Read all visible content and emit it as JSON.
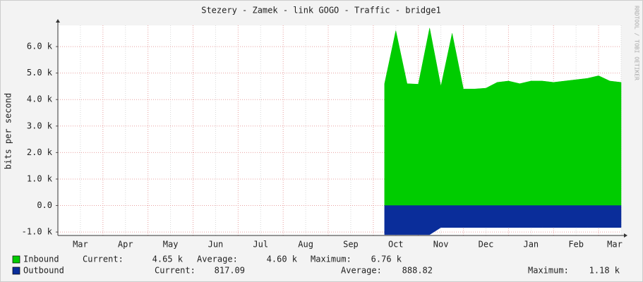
{
  "chart_data": {
    "type": "area",
    "title": "Stezery - Zamek - link GOGO  - Traffic - bridge1",
    "y_label": "bits per second",
    "watermark": "RRDTOOL / TOBI OETIKER",
    "categories": [
      null,
      null,
      "Mar",
      null,
      null,
      null,
      "Apr",
      null,
      null,
      null,
      "May",
      null,
      null,
      null,
      "Jun",
      null,
      null,
      null,
      "Jul",
      null,
      null,
      null,
      "Aug",
      null,
      null,
      null,
      "Sep",
      null,
      null,
      null,
      "Oct",
      null,
      null,
      null,
      "Nov",
      null,
      null,
      null,
      "Dec",
      null,
      null,
      null,
      "Jan",
      null,
      null,
      null,
      "Feb",
      null,
      null,
      null,
      "Mar"
    ],
    "series": [
      {
        "name": "Inbound",
        "color": "#00cc00",
        "values": [
          null,
          null,
          null,
          null,
          null,
          null,
          null,
          null,
          null,
          null,
          null,
          null,
          null,
          null,
          null,
          null,
          null,
          null,
          null,
          null,
          null,
          null,
          null,
          null,
          null,
          null,
          null,
          null,
          null,
          4600,
          6600,
          4600,
          4580,
          6700,
          4500,
          6500,
          4400,
          4400,
          4430,
          4650,
          4700,
          4600,
          4700,
          4700,
          4650,
          4700,
          4750,
          4800,
          4900,
          4700,
          4650
        ],
        "stats": [
          {
            "label": "Current:",
            "value": "4.65 k"
          },
          {
            "label": "Average:",
            "value": "4.60 k"
          },
          {
            "label": "Maximum:",
            "value": "6.76 k"
          }
        ]
      },
      {
        "name": "Outbound",
        "color": "#0a2d9a",
        "values": [
          null,
          null,
          null,
          null,
          null,
          null,
          null,
          null,
          null,
          null,
          null,
          null,
          null,
          null,
          null,
          null,
          null,
          null,
          null,
          null,
          null,
          null,
          null,
          null,
          null,
          null,
          null,
          null,
          null,
          -1100,
          -1100,
          -1100,
          -1100,
          -1100,
          -830,
          -830,
          -830,
          -830,
          -830,
          -830,
          -830,
          -830,
          -830,
          -830,
          -830,
          -830,
          -830,
          -830,
          -830,
          -830,
          -830
        ],
        "stats": [
          {
            "label": "Current:",
            "value": "817.09"
          },
          {
            "label": "Average:",
            "value": "888.82"
          },
          {
            "label": "Maximum:",
            "value": "1.18 k"
          }
        ]
      }
    ],
    "ylim": [
      -1130,
      6800
    ],
    "yticks": [
      {
        "value": -1000,
        "label": "-1.0 k"
      },
      {
        "value": 0,
        "label": "0.0"
      },
      {
        "value": 1000,
        "label": "1.0 k"
      },
      {
        "value": 2000,
        "label": "2.0 k"
      },
      {
        "value": 3000,
        "label": "3.0 k"
      },
      {
        "value": 4000,
        "label": "4.0 k"
      },
      {
        "value": 5000,
        "label": "5.0 k"
      },
      {
        "value": 6000,
        "label": "6.0 k"
      }
    ],
    "grid": true
  }
}
